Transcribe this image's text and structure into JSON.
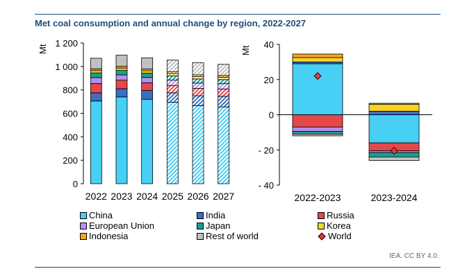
{
  "title": "Met coal consumption and annual change by region, 2022-2027",
  "source": "IEA. CC BY 4.0.",
  "colors": {
    "china": "#47cff5",
    "india": "#3a6fc4",
    "russia": "#e5474b",
    "eu": "#b58ff0",
    "japan": "#1a9f8b",
    "korea": "#f5d327",
    "indonesia": "#f5a623",
    "rest": "#c0c0c0",
    "world": "#e5383b"
  },
  "chart_data": [
    {
      "type": "bar",
      "stacked": true,
      "ylabel": "Mt",
      "ylim": [
        0,
        1200
      ],
      "yticks": [
        0,
        200,
        400,
        600,
        800,
        1000,
        1200
      ],
      "ytick_labels": [
        "0",
        "200",
        "400",
        "600",
        "800",
        "1 000",
        "1 200"
      ],
      "categories": [
        "2022",
        "2023",
        "2024",
        "2025",
        "2026",
        "2027"
      ],
      "forecast_categories": [
        "2025",
        "2026",
        "2027"
      ],
      "series": [
        {
          "name": "China",
          "key": "china",
          "values": [
            705,
            740,
            720,
            695,
            665,
            655
          ]
        },
        {
          "name": "India",
          "key": "india",
          "values": [
            70,
            70,
            75,
            80,
            85,
            90
          ]
        },
        {
          "name": "Russia",
          "key": "russia",
          "values": [
            80,
            73,
            66,
            63,
            63,
            63
          ]
        },
        {
          "name": "European Union",
          "key": "eu",
          "values": [
            50,
            45,
            45,
            45,
            45,
            45
          ]
        },
        {
          "name": "Japan",
          "key": "japan",
          "values": [
            40,
            38,
            37,
            36,
            35,
            35
          ]
        },
        {
          "name": "Korea",
          "key": "korea",
          "values": [
            20,
            20,
            20,
            20,
            20,
            20
          ]
        },
        {
          "name": "Indonesia",
          "key": "indonesia",
          "values": [
            15,
            15,
            15,
            15,
            15,
            15
          ]
        },
        {
          "name": "Rest of world",
          "key": "rest",
          "values": [
            90,
            95,
            95,
            100,
            105,
            95
          ]
        }
      ]
    },
    {
      "type": "bar",
      "stacked": true,
      "ylabel": "Mt",
      "ylim": [
        -40,
        40
      ],
      "yticks": [
        -40,
        -20,
        0,
        20,
        40
      ],
      "ytick_labels": [
        "- 40",
        "- 20",
        "0",
        "20",
        "40"
      ],
      "categories": [
        "2022-2023",
        "2023-2024"
      ],
      "series": [
        {
          "name": "China",
          "key": "china",
          "values": [
            29,
            -16
          ]
        },
        {
          "name": "India",
          "key": "india",
          "values": [
            1,
            2
          ]
        },
        {
          "name": "Russia",
          "key": "russia",
          "values": [
            -7,
            -4.5
          ]
        },
        {
          "name": "European Union",
          "key": "eu",
          "values": [
            -2.5,
            -1
          ]
        },
        {
          "name": "Japan",
          "key": "japan",
          "values": [
            -1.5,
            -2.5
          ]
        },
        {
          "name": "Korea",
          "key": "korea",
          "values": [
            2.5,
            4
          ]
        },
        {
          "name": "Indonesia",
          "key": "indonesia",
          "values": [
            2,
            0.5
          ]
        },
        {
          "name": "Rest of world",
          "key": "rest",
          "values": [
            -1,
            -2
          ]
        }
      ],
      "world": {
        "name": "World",
        "values": [
          22,
          -20.5
        ]
      }
    }
  ],
  "legend": [
    {
      "label": "China",
      "key": "china"
    },
    {
      "label": "India",
      "key": "india"
    },
    {
      "label": "Russia",
      "key": "russia"
    },
    {
      "label": "European Union",
      "key": "eu"
    },
    {
      "label": "Japan",
      "key": "japan"
    },
    {
      "label": "Korea",
      "key": "korea"
    },
    {
      "label": "Indonesia",
      "key": "indonesia"
    },
    {
      "label": "Rest of world",
      "key": "rest"
    },
    {
      "label": "World",
      "key": "world",
      "marker": "diamond"
    }
  ]
}
